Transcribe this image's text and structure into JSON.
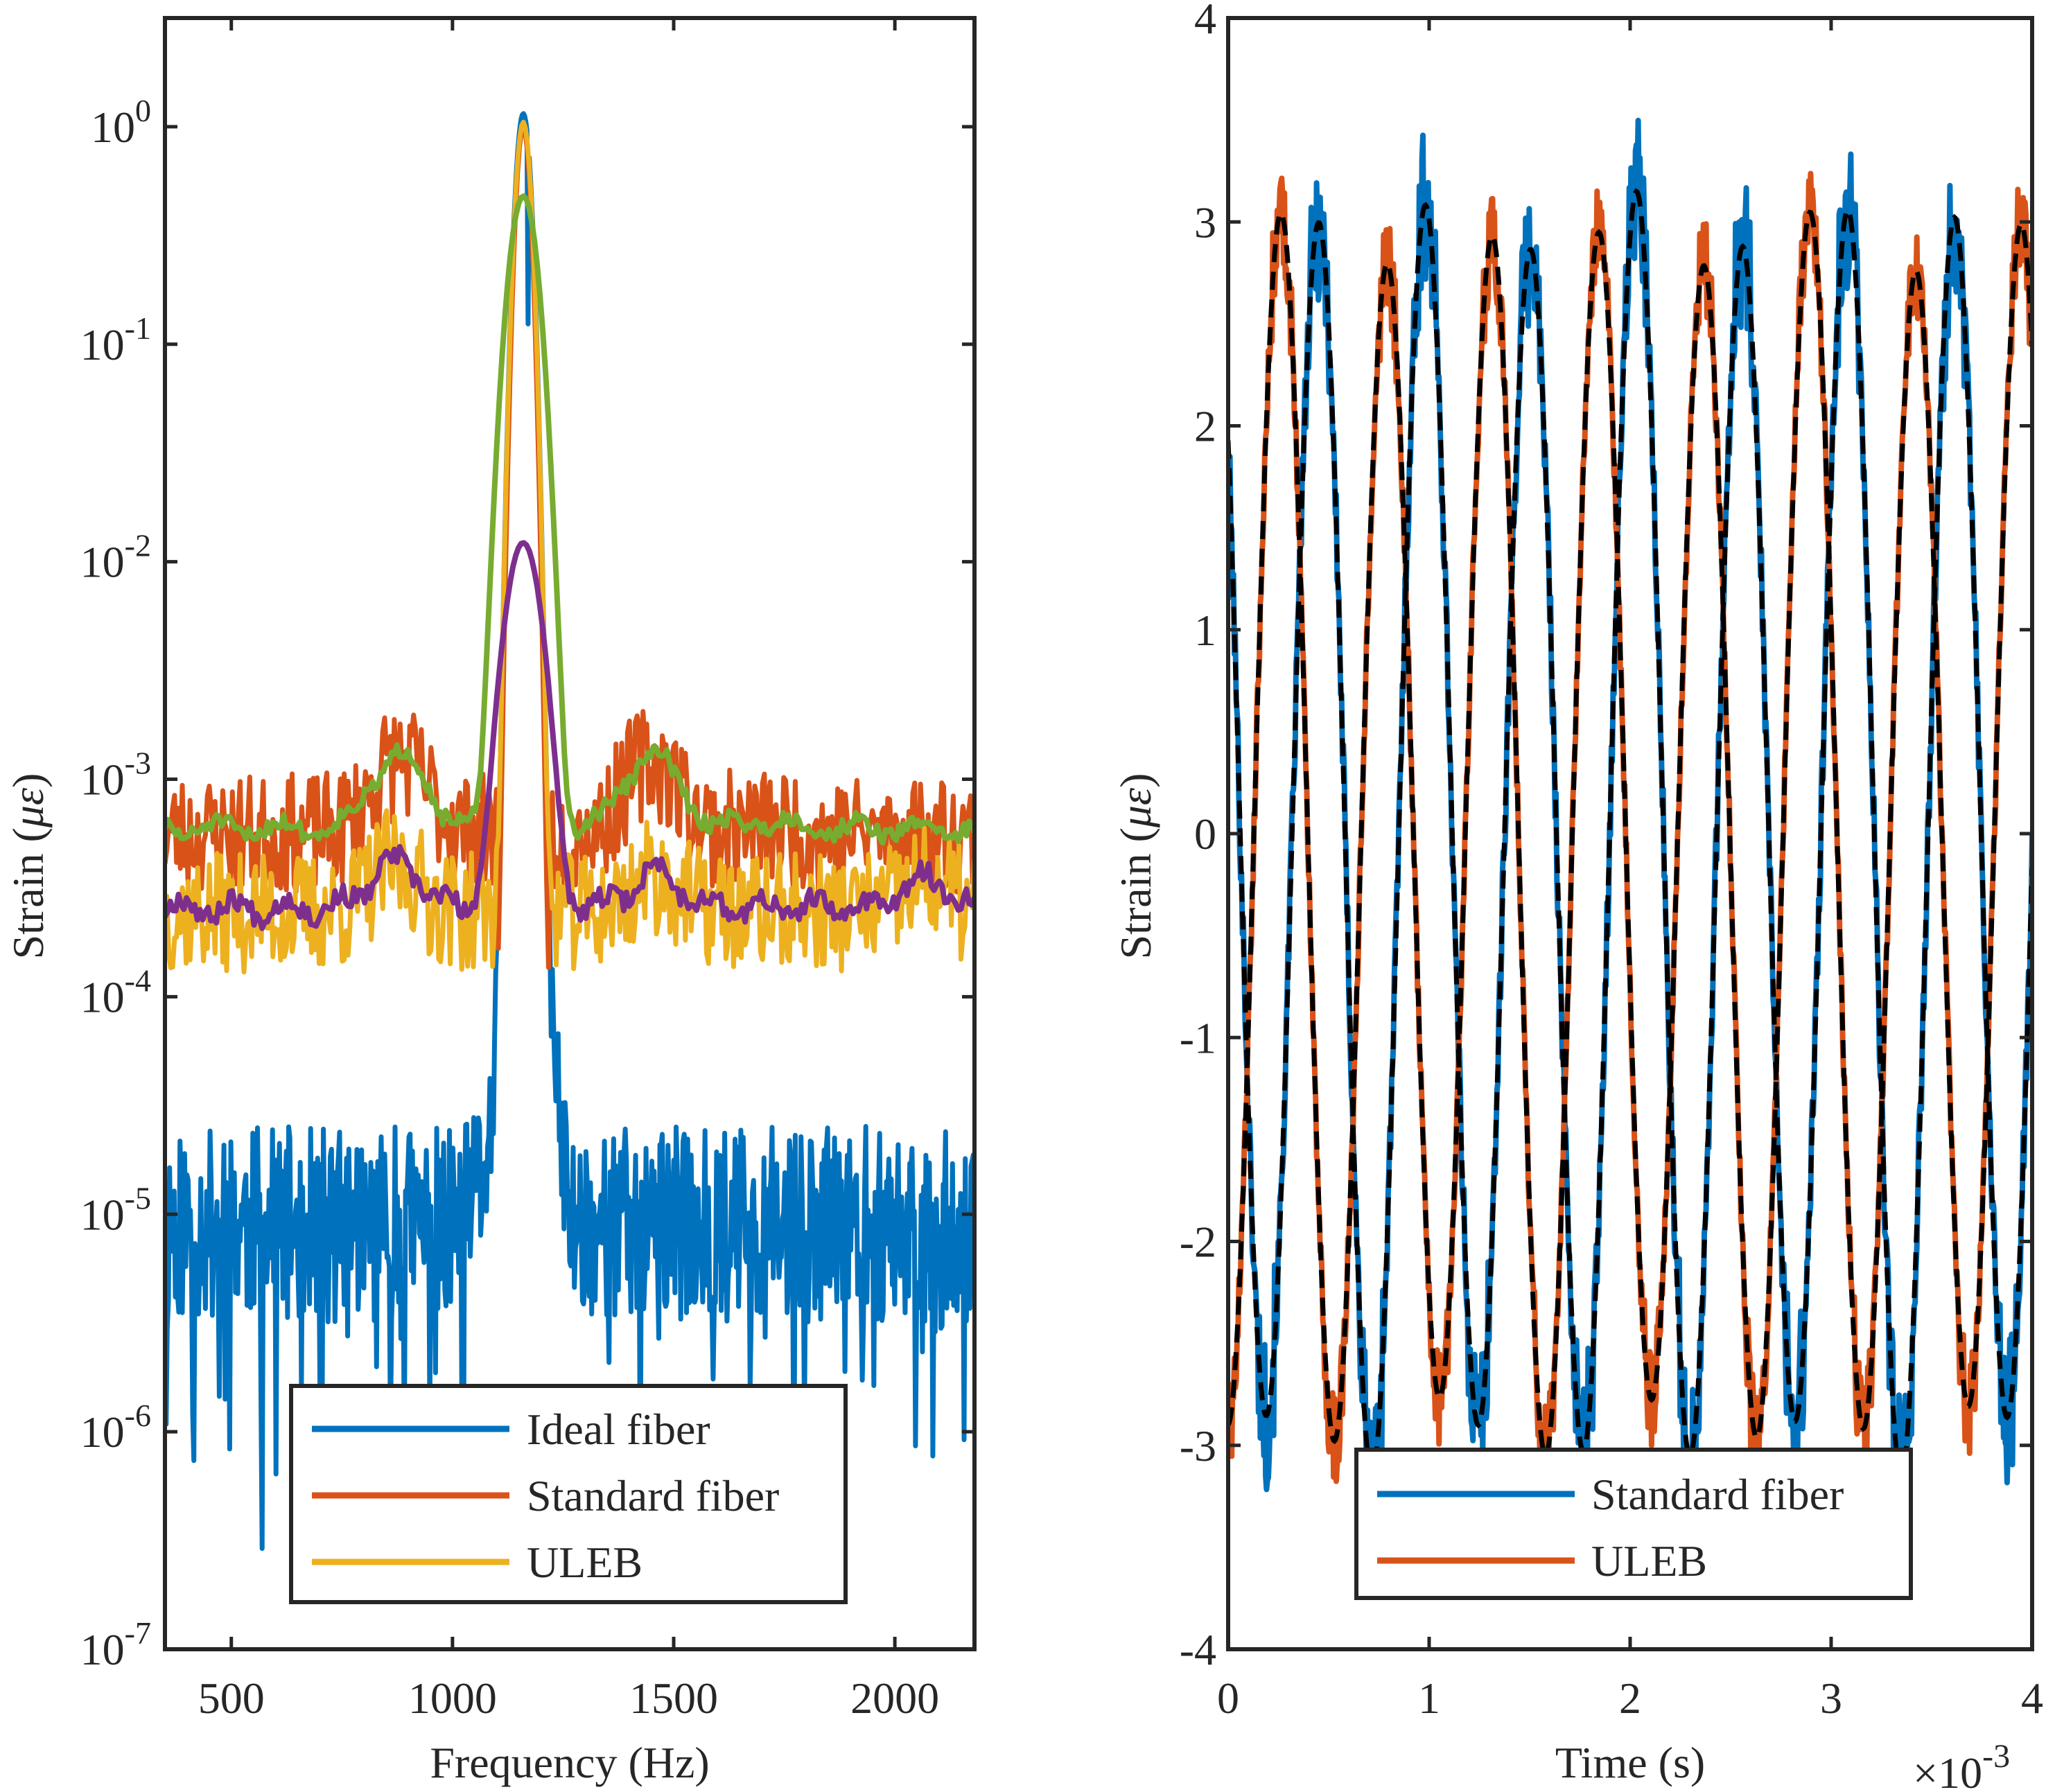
{
  "chart_data": [
    {
      "type": "line",
      "yscale": "log",
      "xlabel": "Frequency (Hz)",
      "ylabel_text": "Strain (",
      "ylabel_symbol": "με",
      "ylabel_close": ")",
      "xlim": [
        350,
        2180
      ],
      "ylim_exponent": [
        -7,
        0.5
      ],
      "xticks": [
        500,
        1000,
        1500,
        2000
      ],
      "yticks": [
        {
          "exp": 0,
          "base": "10",
          "sup": "0"
        },
        {
          "exp": -1,
          "base": "10",
          "sup": "-1"
        },
        {
          "exp": -2,
          "base": "10",
          "sup": "-2"
        },
        {
          "exp": -3,
          "base": "10",
          "sup": "-3"
        },
        {
          "exp": -4,
          "base": "10",
          "sup": "-4"
        },
        {
          "exp": -5,
          "base": "10",
          "sup": "-5"
        },
        {
          "exp": -6,
          "base": "10",
          "sup": "-6"
        },
        {
          "exp": -7,
          "base": "10",
          "sup": "-7"
        }
      ],
      "peak_hz": 1160,
      "legend_placement": "bottom-center",
      "legend": [
        "Ideal fiber",
        "Standard fiber",
        "ULEB"
      ],
      "series": [
        {
          "name": "Ideal fiber",
          "color": "#0072BD",
          "peak": 1.15,
          "noise_floor": 1e-05,
          "shown_in_legend": true
        },
        {
          "name": "Standard fiber",
          "color": "#D95319",
          "peak": 1.0,
          "noise_floor": 0.0006,
          "shown_in_legend": true
        },
        {
          "name": "ULEB",
          "color": "#EDB120",
          "peak": 1.05,
          "noise_floor": 0.00026,
          "shown_in_legend": true
        },
        {
          "name": "Standard fiber (smoothed)",
          "color": "#77AC30",
          "peak": 0.48,
          "noise_floor": 0.0006,
          "shown_in_legend": false
        },
        {
          "name": "ULEB (smoothed)",
          "color": "#7E2F8E",
          "peak": 0.012,
          "noise_floor": 0.00024,
          "shown_in_legend": false
        }
      ],
      "smoothed_bumps": {
        "standard": [
          {
            "hz": 880,
            "value": 0.0013
          },
          {
            "hz": 1450,
            "value": 0.0013
          },
          {
            "hz": 1700,
            "value": 0.00065
          },
          {
            "hz": 1950,
            "value": 0.0006
          }
        ],
        "uleb": [
          {
            "hz": 870,
            "value": 0.00042
          },
          {
            "hz": 1460,
            "value": 0.00038
          },
          {
            "hz": 2070,
            "value": 0.00035
          }
        ]
      }
    },
    {
      "type": "line",
      "xlabel": "Time (s)",
      "ylabel_text": "Strain (",
      "ylabel_symbol": "με",
      "ylabel_close": ")",
      "xlim": [
        0,
        4
      ],
      "x_multiplier_base": "×10",
      "x_multiplier_exp": "-3",
      "ylim": [
        -4,
        4
      ],
      "xticks": [
        "0",
        "1",
        "2",
        "3",
        "4"
      ],
      "yticks": [
        "4",
        "3",
        "2",
        "1",
        "0",
        "-1",
        "-2",
        "-3",
        "-4"
      ],
      "frequency_hz": 1900,
      "legend_placement": "bottom-center",
      "legend": [
        "Standard fiber",
        "ULEB"
      ],
      "series": [
        {
          "name": "Standard fiber",
          "color": "#0072BD",
          "amplitude": 3.0,
          "phase_deg": 50,
          "shown_in_legend": true
        },
        {
          "name": "ULEB",
          "color": "#D95319",
          "amplitude": 2.9,
          "phase_deg": 180,
          "shown_in_legend": true
        },
        {
          "name": "Reference",
          "color": "#000000",
          "dashed": true,
          "shown_in_legend": false
        }
      ]
    }
  ]
}
